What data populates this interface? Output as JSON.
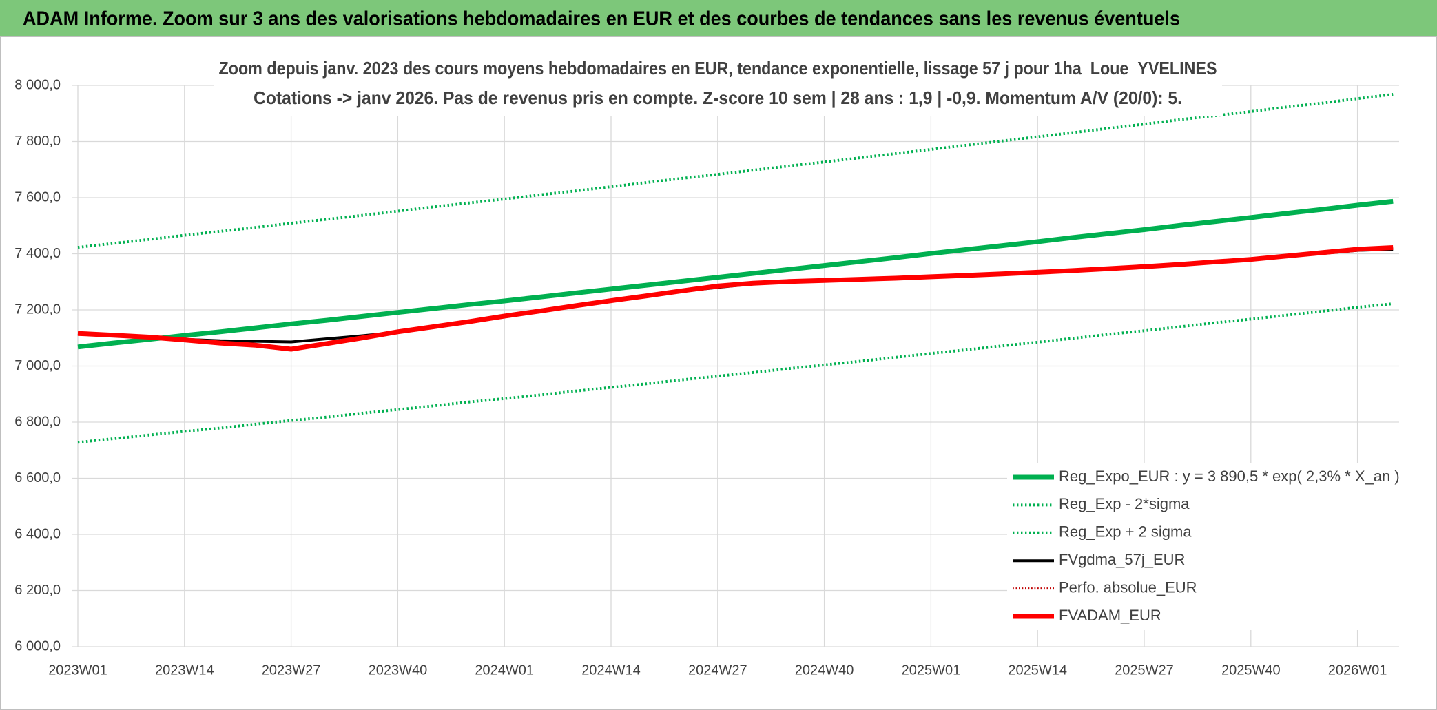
{
  "header": {
    "title": "ADAM Informe. Zoom sur 3 ans des valorisations hebdomadaires en EUR et des courbes de tendances sans les revenus éventuels"
  },
  "chart_data": {
    "type": "line",
    "title": "Zoom depuis janv. 2023 des cours moyens hebdomadaires en EUR, tendance exponentielle, lissage 57 j pour 1ha_Loue_YVELINES",
    "subtitle": "Cotations -> janv 2026. Pas de revenus pris en compte. Z-score 10 sem | 28 ans : 1,9 | -0,9. Momentum A/V (20/0): 5.",
    "categories": [
      "2023W01",
      null,
      null,
      "2023W14",
      null,
      null,
      "2023W27",
      null,
      null,
      "2023W40",
      null,
      null,
      "2024W01",
      null,
      null,
      "2024W14",
      null,
      null,
      "2024W27",
      null,
      null,
      "2024W40",
      null,
      null,
      "2025W01",
      null,
      null,
      "2025W14",
      null,
      null,
      "2025W27",
      null,
      null,
      "2025W40",
      null,
      null,
      "2026W01",
      null
    ],
    "ylim": [
      6000,
      8000
    ],
    "yticks": [
      {
        "value": 6000,
        "label": "6 000,0"
      },
      {
        "value": 6200,
        "label": "6 200,0"
      },
      {
        "value": 6400,
        "label": "6 400,0"
      },
      {
        "value": 6600,
        "label": "6 600,0"
      },
      {
        "value": 6800,
        "label": "6 800,0"
      },
      {
        "value": 7000,
        "label": "7 000,0"
      },
      {
        "value": 7200,
        "label": "7 200,0"
      },
      {
        "value": 7400,
        "label": "7 400,0"
      },
      {
        "value": 7600,
        "label": "7 600,0"
      },
      {
        "value": 7800,
        "label": "7 800,0"
      },
      {
        "value": 8000,
        "label": "8 000,0"
      }
    ],
    "grid": true,
    "legend": "lower right",
    "series": [
      {
        "name": "Reg_Expo_EUR : y = 3 890,5 * exp( 2,3% *  X_an )",
        "color": "#00b050",
        "style": "solid",
        "width": 7,
        "values": [
          7068,
          7082,
          7095,
          7109,
          7122,
          7136,
          7150,
          7163,
          7177,
          7191,
          7205,
          7219,
          7232,
          7246,
          7260,
          7274,
          7288,
          7302,
          7316,
          7330,
          7344,
          7358,
          7372,
          7386,
          7401,
          7415,
          7429,
          7443,
          7458,
          7472,
          7486,
          7501,
          7515,
          7529,
          7544,
          7558,
          7573,
          7587
        ]
      },
      {
        "name": "Reg_Exp - 2*sigma",
        "color": "#00b050",
        "style": "dotted",
        "width": 4,
        "values": [
          6728,
          6741,
          6754,
          6767,
          6779,
          6793,
          6806,
          6818,
          6832,
          6845,
          6858,
          6872,
          6884,
          6897,
          6911,
          6924,
          6937,
          6951,
          6964,
          6977,
          6991,
          7004,
          7017,
          7031,
          7045,
          7058,
          7072,
          7085,
          7099,
          7113,
          7126,
          7140,
          7154,
          7167,
          7181,
          7195,
          7209,
          7222
        ]
      },
      {
        "name": "Reg_Exp + 2 sigma",
        "color": "#00b050",
        "style": "dotted",
        "width": 4,
        "values": [
          7423,
          7437,
          7451,
          7466,
          7480,
          7494,
          7509,
          7523,
          7537,
          7552,
          7567,
          7581,
          7595,
          7610,
          7624,
          7639,
          7654,
          7669,
          7683,
          7698,
          7713,
          7727,
          7742,
          7757,
          7772,
          7787,
          7802,
          7817,
          7832,
          7847,
          7862,
          7878,
          7892,
          7907,
          7923,
          7937,
          7953,
          7968
        ]
      },
      {
        "name": "FVgdma_57j_EUR",
        "color": "#000000",
        "style": "solid",
        "width": 4,
        "values": [
          7116,
          7110,
          7103,
          7095,
          7090,
          7088,
          7086,
          7097,
          7108,
          7120,
          7140,
          7158,
          7178,
          7196,
          7215,
          7233,
          7250,
          7266,
          7280,
          7293,
          7300,
          7305,
          7309,
          7313,
          7318,
          7323,
          7328,
          7334,
          7340,
          7347,
          7354,
          7362,
          7371,
          7380,
          7390,
          7401,
          7412,
          7416
        ]
      },
      {
        "name": "Perfo. absolue_EUR",
        "color": "#c00000",
        "style": "dotted",
        "width": 3,
        "values": [
          7116,
          7110,
          7103,
          7093,
          7082,
          7074,
          7060,
          7080,
          7100,
          7122,
          7140,
          7158,
          7178,
          7196,
          7215,
          7233,
          7250,
          7268,
          7285,
          7295,
          7301,
          7305,
          7309,
          7313,
          7318,
          7323,
          7328,
          7334,
          7340,
          7347,
          7354,
          7362,
          7371,
          7380,
          7392,
          7404,
          7416,
          7422
        ]
      },
      {
        "name": "FVADAM_EUR",
        "color": "#ff0000",
        "style": "solid",
        "width": 7,
        "values": [
          7116,
          7110,
          7103,
          7093,
          7082,
          7074,
          7060,
          7080,
          7100,
          7122,
          7140,
          7158,
          7178,
          7196,
          7215,
          7233,
          7250,
          7268,
          7285,
          7295,
          7301,
          7305,
          7309,
          7313,
          7318,
          7323,
          7328,
          7334,
          7340,
          7347,
          7354,
          7362,
          7371,
          7380,
          7392,
          7404,
          7416,
          7422
        ]
      }
    ]
  }
}
